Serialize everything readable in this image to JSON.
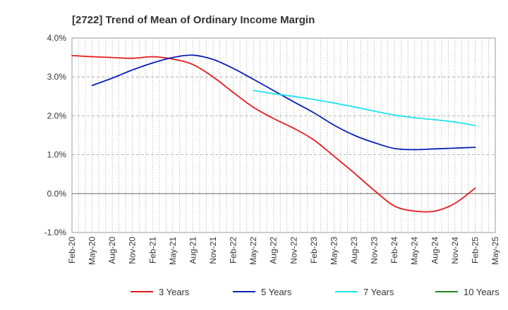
{
  "chart_data": {
    "type": "line",
    "title": "[2722]  Trend of Mean of Ordinary Income Margin",
    "xlabel": "",
    "ylabel": "",
    "x_ticks": [
      "Feb-20",
      "May-20",
      "Aug-20",
      "Nov-20",
      "Feb-21",
      "May-21",
      "Aug-21",
      "Nov-21",
      "Feb-22",
      "May-22",
      "Aug-22",
      "Nov-22",
      "Feb-23",
      "May-23",
      "Aug-23",
      "Nov-23",
      "Feb-24",
      "May-24",
      "Aug-24",
      "Nov-24",
      "Feb-25",
      "May-25"
    ],
    "y_ticks": [
      "4.0%",
      "3.0%",
      "2.0%",
      "1.0%",
      "0.0%",
      "-1.0%"
    ],
    "ylim": [
      -1.0,
      4.0
    ],
    "grid": true,
    "legend_position": "bottom",
    "series": [
      {
        "name": "3 Years",
        "color": "#e41a1c",
        "points": [
          [
            "Feb-20",
            3.55
          ],
          [
            "May-20",
            3.52
          ],
          [
            "Aug-20",
            3.5
          ],
          [
            "Nov-20",
            3.48
          ],
          [
            "Feb-21",
            3.52
          ],
          [
            "May-21",
            3.46
          ],
          [
            "Aug-21",
            3.32
          ],
          [
            "Nov-21",
            3.0
          ],
          [
            "Feb-22",
            2.6
          ],
          [
            "May-22",
            2.22
          ],
          [
            "Aug-22",
            1.93
          ],
          [
            "Nov-22",
            1.68
          ],
          [
            "Feb-23",
            1.38
          ],
          [
            "May-23",
            0.96
          ],
          [
            "Aug-23",
            0.53
          ],
          [
            "Nov-23",
            0.08
          ],
          [
            "Feb-24",
            -0.32
          ],
          [
            "May-24",
            -0.45
          ],
          [
            "Aug-24",
            -0.45
          ],
          [
            "Nov-24",
            -0.25
          ],
          [
            "Feb-25",
            0.14
          ]
        ]
      },
      {
        "name": "5 Years",
        "color": "#0a1fb5",
        "points": [
          [
            "May-20",
            2.78
          ],
          [
            "Aug-20",
            2.97
          ],
          [
            "Nov-20",
            3.18
          ],
          [
            "Feb-21",
            3.36
          ],
          [
            "May-21",
            3.5
          ],
          [
            "Aug-21",
            3.56
          ],
          [
            "Nov-21",
            3.45
          ],
          [
            "Feb-22",
            3.22
          ],
          [
            "May-22",
            2.94
          ],
          [
            "Aug-22",
            2.65
          ],
          [
            "Nov-22",
            2.36
          ],
          [
            "Feb-23",
            2.08
          ],
          [
            "May-23",
            1.76
          ],
          [
            "Aug-23",
            1.5
          ],
          [
            "Nov-23",
            1.31
          ],
          [
            "Feb-24",
            1.16
          ],
          [
            "May-24",
            1.13
          ],
          [
            "Aug-24",
            1.15
          ],
          [
            "Nov-24",
            1.17
          ],
          [
            "Feb-25",
            1.19
          ]
        ]
      },
      {
        "name": "7 Years",
        "color": "#1de3ee",
        "points": [
          [
            "May-22",
            2.65
          ],
          [
            "Aug-22",
            2.57
          ],
          [
            "Nov-22",
            2.5
          ],
          [
            "Feb-23",
            2.42
          ],
          [
            "May-23",
            2.33
          ],
          [
            "Aug-23",
            2.23
          ],
          [
            "Nov-23",
            2.12
          ],
          [
            "Feb-24",
            2.02
          ],
          [
            "May-24",
            1.95
          ],
          [
            "Aug-24",
            1.9
          ],
          [
            "Nov-24",
            1.84
          ],
          [
            "Feb-25",
            1.75
          ]
        ]
      },
      {
        "name": "10 Years",
        "color": "#1e8a1e",
        "points": []
      }
    ]
  }
}
